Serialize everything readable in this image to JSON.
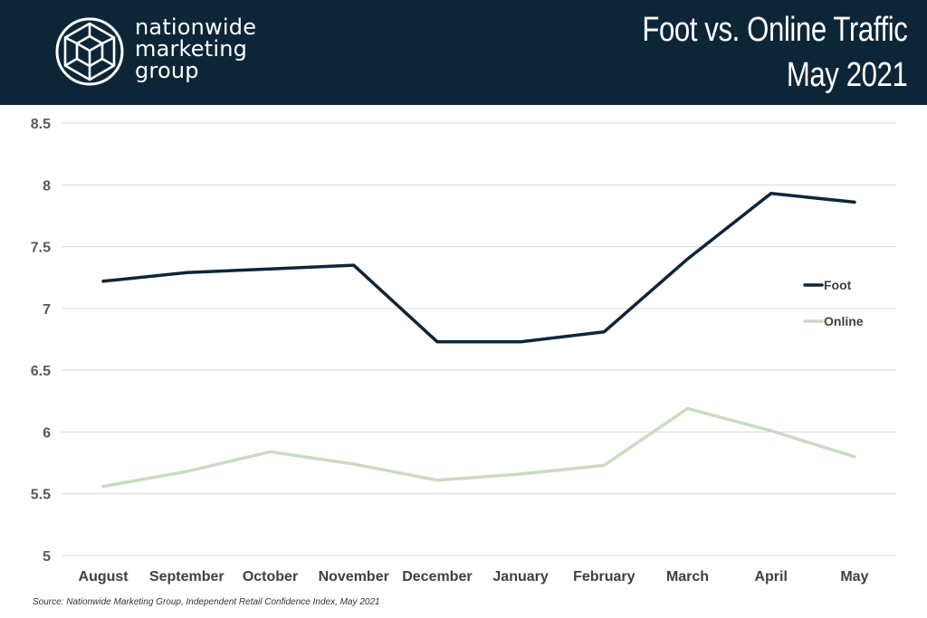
{
  "brand": {
    "name_lines": [
      "nationwide",
      "marketing",
      "group"
    ],
    "logo_icon": "cube-hexagon-logo-icon",
    "header_color": "#0d2637"
  },
  "header": {
    "title_line1": "Foot vs. Online Traffic",
    "title_line2": "May 2021"
  },
  "chart_data": {
    "type": "line",
    "title": "Foot vs. Online Traffic May 2021",
    "categories": [
      "August",
      "September",
      "October",
      "November",
      "December",
      "January",
      "February",
      "March",
      "April",
      "May"
    ],
    "series": [
      {
        "name": "Foot",
        "color": "#0d2637",
        "values": [
          7.22,
          7.29,
          7.32,
          7.35,
          6.73,
          6.73,
          6.81,
          7.4,
          7.93,
          7.86
        ]
      },
      {
        "name": "Online",
        "color": "#c9dcc2",
        "values": [
          5.56,
          5.68,
          5.84,
          5.74,
          5.61,
          5.66,
          5.73,
          6.19,
          6.01,
          5.8
        ]
      }
    ],
    "ylim": [
      5,
      8.5
    ],
    "yticks": [
      "5",
      "5.5",
      "6",
      "6.5",
      "7",
      "7.5",
      "8",
      "8.5"
    ],
    "grid": true,
    "legend": "right"
  },
  "footnote": "Source: Nationwide Marketing Group, Independent Retail Confidence Index, May 2021"
}
